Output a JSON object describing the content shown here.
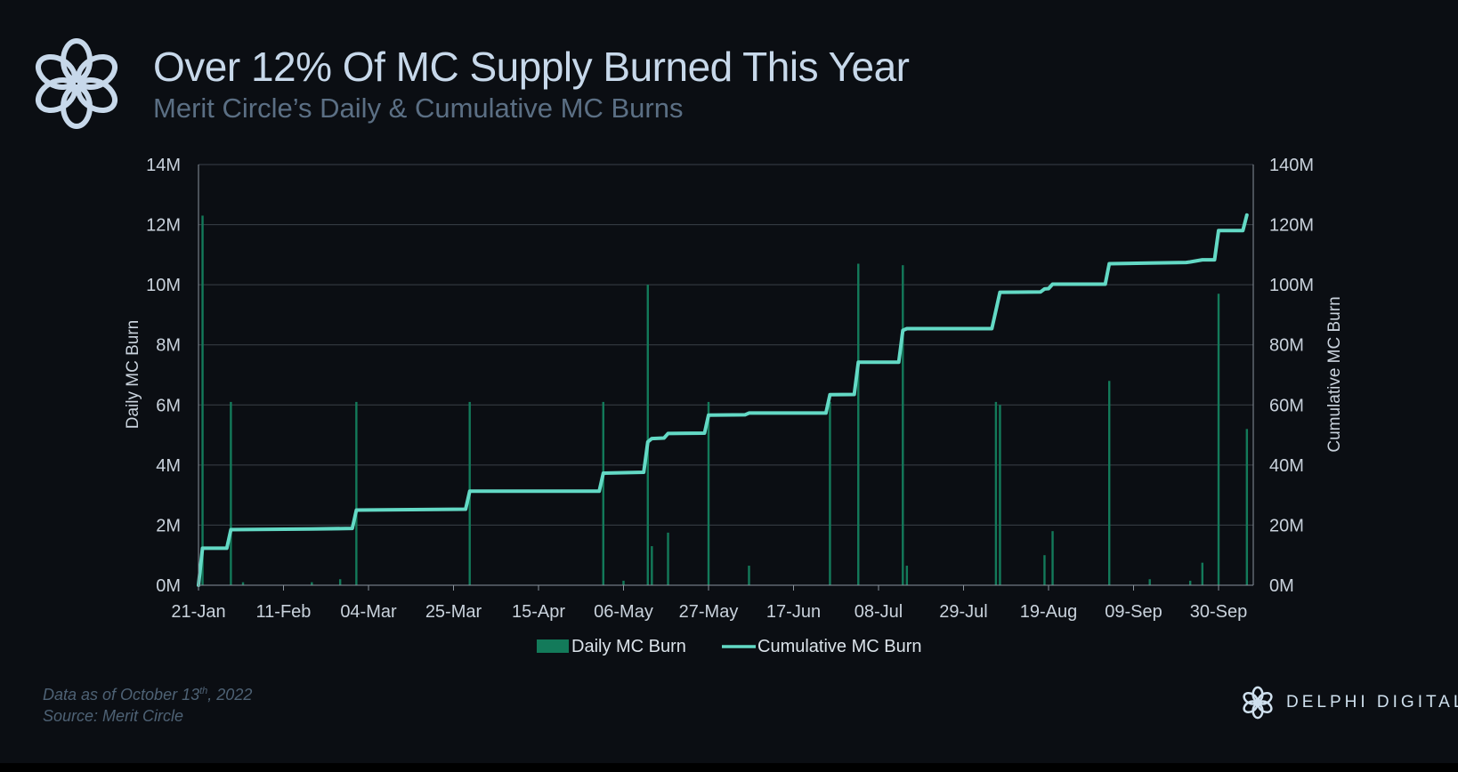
{
  "header": {
    "title": "Over 12% Of MC Supply Burned This Year",
    "subtitle": "Merit Circle’s Daily & Cumulative MC Burns"
  },
  "footnote": {
    "data_as_of_prefix": "Data as of October 13",
    "data_as_of_sup": "th",
    "data_as_of_suffix": ", 2022",
    "source": "Source: Merit Circle"
  },
  "brand": {
    "name": "DELPHI DIGITAL",
    "logo_icon": "merit-circle-knot-icon",
    "brand_icon": "delphi-knot-icon"
  },
  "colors": {
    "background": "#0b0e13",
    "daily_bar": "#137a5a",
    "cumulative_line": "#63d9c5",
    "grid": "#3a4048",
    "text": "#c9d2dc"
  },
  "chart_data": {
    "type": "bar",
    "start_date": "2022-01-21",
    "end_date": "2022-10-13",
    "x_ticks": [
      "21-Jan",
      "11-Feb",
      "04-Mar",
      "25-Mar",
      "15-Apr",
      "06-May",
      "27-May",
      "17-Jun",
      "08-Jul",
      "29-Jul",
      "19-Aug",
      "09-Sep",
      "30-Sep"
    ],
    "ylabel": "Daily MC Burn",
    "y2label": "Cumulative MC Burn",
    "ylim": [
      0,
      14000000
    ],
    "y2lim": [
      0,
      140000000
    ],
    "y_ticks": [
      "0M",
      "2M",
      "4M",
      "6M",
      "8M",
      "10M",
      "12M",
      "14M"
    ],
    "y2_ticks": [
      "0M",
      "20M",
      "40M",
      "60M",
      "80M",
      "100M",
      "120M",
      "140M"
    ],
    "grid": true,
    "legend_position": "bottom-center",
    "series": [
      {
        "name": "Daily MC Burn",
        "type": "bar",
        "axis": "left",
        "points": [
          [
            "2022-01-22",
            12.3
          ],
          [
            "2022-01-29",
            6.1
          ],
          [
            "2022-02-01",
            0.1
          ],
          [
            "2022-02-18",
            0.1
          ],
          [
            "2022-02-25",
            0.2
          ],
          [
            "2022-03-01",
            6.1
          ],
          [
            "2022-03-29",
            6.1
          ],
          [
            "2022-05-01",
            6.1
          ],
          [
            "2022-05-06",
            0.15
          ],
          [
            "2022-05-12",
            10.0
          ],
          [
            "2022-05-13",
            1.3
          ],
          [
            "2022-05-17",
            1.75
          ],
          [
            "2022-05-27",
            6.1
          ],
          [
            "2022-06-06",
            0.65
          ],
          [
            "2022-06-26",
            6.1
          ],
          [
            "2022-07-03",
            10.7
          ],
          [
            "2022-07-14",
            10.65
          ],
          [
            "2022-07-15",
            0.65
          ],
          [
            "2022-08-06",
            6.1
          ],
          [
            "2022-08-07",
            6.0
          ],
          [
            "2022-08-18",
            1.0
          ],
          [
            "2022-08-20",
            1.8
          ],
          [
            "2022-09-03",
            6.8
          ],
          [
            "2022-09-13",
            0.2
          ],
          [
            "2022-09-23",
            0.15
          ],
          [
            "2022-09-26",
            0.75
          ],
          [
            "2022-09-30",
            9.7
          ],
          [
            "2022-10-07",
            5.2
          ]
        ],
        "unit": "M"
      },
      {
        "name": "Cumulative MC Burn",
        "type": "line",
        "axis": "right",
        "points": [
          [
            "2022-01-21",
            0
          ],
          [
            "2022-01-22",
            12.3
          ],
          [
            "2022-01-28",
            12.3
          ],
          [
            "2022-01-29",
            18.5
          ],
          [
            "2022-02-18",
            18.7
          ],
          [
            "2022-02-28",
            18.9
          ],
          [
            "2022-03-01",
            25.0
          ],
          [
            "2022-03-28",
            25.3
          ],
          [
            "2022-03-29",
            31.3
          ],
          [
            "2022-04-30",
            31.3
          ],
          [
            "2022-05-01",
            37.3
          ],
          [
            "2022-05-11",
            37.6
          ],
          [
            "2022-05-12",
            47.7
          ],
          [
            "2022-05-13",
            48.8
          ],
          [
            "2022-05-16",
            49.0
          ],
          [
            "2022-05-17",
            50.5
          ],
          [
            "2022-05-26",
            50.6
          ],
          [
            "2022-05-27",
            56.6
          ],
          [
            "2022-06-05",
            56.7
          ],
          [
            "2022-06-06",
            57.3
          ],
          [
            "2022-06-25",
            57.3
          ],
          [
            "2022-06-26",
            63.4
          ],
          [
            "2022-07-02",
            63.5
          ],
          [
            "2022-07-03",
            74.2
          ],
          [
            "2022-07-13",
            74.2
          ],
          [
            "2022-07-14",
            84.8
          ],
          [
            "2022-07-15",
            85.4
          ],
          [
            "2022-08-05",
            85.4
          ],
          [
            "2022-08-06",
            91.5
          ],
          [
            "2022-08-07",
            97.5
          ],
          [
            "2022-08-17",
            97.6
          ],
          [
            "2022-08-18",
            98.6
          ],
          [
            "2022-08-19",
            98.7
          ],
          [
            "2022-08-20",
            100.2
          ],
          [
            "2022-09-02",
            100.2
          ],
          [
            "2022-09-03",
            107.0
          ],
          [
            "2022-09-13",
            107.2
          ],
          [
            "2022-09-22",
            107.4
          ],
          [
            "2022-09-23",
            107.6
          ],
          [
            "2022-09-26",
            108.3
          ],
          [
            "2022-09-29",
            108.3
          ],
          [
            "2022-09-30",
            118.0
          ],
          [
            "2022-10-06",
            118.0
          ],
          [
            "2022-10-07",
            123.2
          ]
        ],
        "unit": "M"
      }
    ]
  }
}
